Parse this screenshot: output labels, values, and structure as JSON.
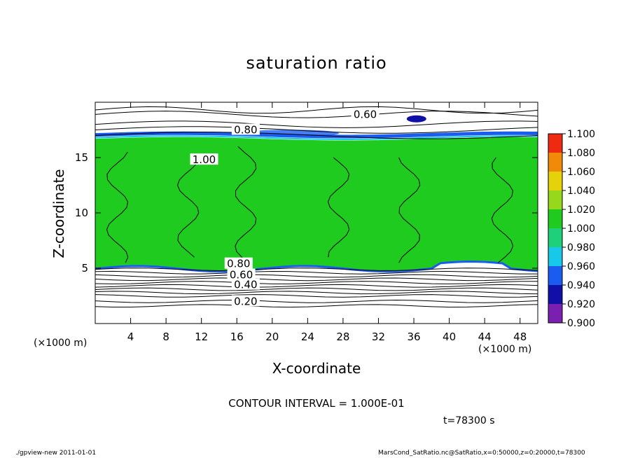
{
  "chart_data": {
    "type": "heatmap",
    "title": "saturation ratio",
    "xlabel": "X-coordinate",
    "ylabel": "Z-coordinate",
    "x_unit_left": "(×1000 m)",
    "x_unit_right": "(×1000 m)",
    "xlim": [
      0,
      50
    ],
    "ylim": [
      0,
      20
    ],
    "x_ticks": [
      4,
      8,
      12,
      16,
      20,
      24,
      28,
      32,
      36,
      40,
      44,
      48
    ],
    "y_ticks": [
      5,
      10,
      15
    ],
    "colorbar": {
      "values": [
        "0.900",
        "0.920",
        "0.940",
        "0.960",
        "0.980",
        "1.000",
        "1.020",
        "1.040",
        "1.060",
        "1.080",
        "1.100"
      ],
      "colors": [
        "#7a1fb0",
        "#1010a8",
        "#1a5cf0",
        "#18c8e8",
        "#1fd07a",
        "#1ecb1e",
        "#96d81c",
        "#e6d20a",
        "#f08a08",
        "#ee2a10",
        "#f48080"
      ]
    },
    "contour_labels": [
      {
        "text": "0.60",
        "x": 30.5,
        "z": 18.9
      },
      {
        "text": "0.80",
        "x": 17.0,
        "z": 17.5
      },
      {
        "text": "1.00",
        "x": 12.3,
        "z": 14.8
      },
      {
        "text": "0.80",
        "x": 16.2,
        "z": 5.4
      },
      {
        "text": "0.60",
        "x": 16.5,
        "z": 4.4
      },
      {
        "text": "0.40",
        "x": 17.0,
        "z": 3.5
      },
      {
        "text": "0.20",
        "x": 17.0,
        "z": 2.0
      }
    ],
    "contour_interval": "CONTOUR INTERVAL = 1.000E-01",
    "time": "t=78300 s"
  },
  "footer": {
    "left": "./gpview-new  2011-01-01",
    "right": "MarsCond_SatRatio.nc@SatRatio,x=0:50000,z=0:20000,t=78300"
  }
}
